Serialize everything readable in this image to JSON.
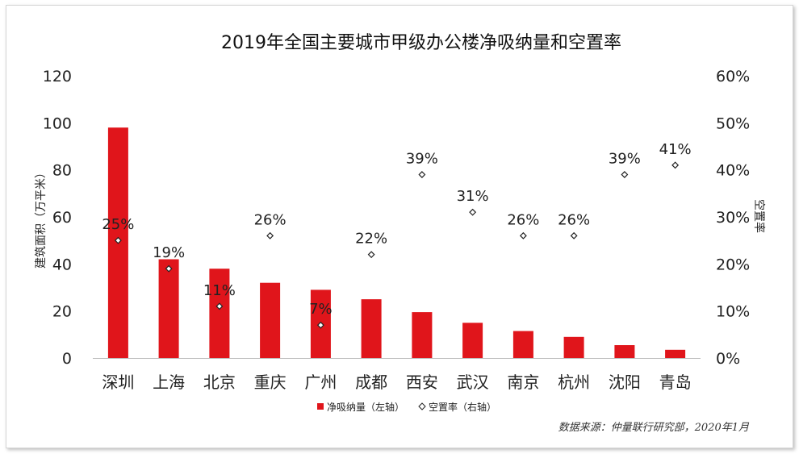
{
  "chart_data": {
    "type": "bar+scatter",
    "title": "2019年全国主要城市甲级办公楼净吸纳量和空置率",
    "categories": [
      "深圳",
      "上海",
      "北京",
      "重庆",
      "广州",
      "成都",
      "西安",
      "武汉",
      "南京",
      "杭州",
      "沈阳",
      "青岛"
    ],
    "series": [
      {
        "name": "净吸纳量（左轴）",
        "type": "bar",
        "axis": "left",
        "color": "#e0151b",
        "values": [
          98,
          42,
          38,
          32,
          29,
          25,
          19.5,
          15,
          11.5,
          9,
          5.5,
          3.5
        ]
      },
      {
        "name": "空置率（右轴）",
        "type": "scatter",
        "axis": "right",
        "marker": "diamond",
        "values": [
          25,
          19,
          11,
          26,
          7,
          22,
          39,
          31,
          26,
          26,
          39,
          41
        ],
        "labels": [
          "25%",
          "19%",
          "11%",
          "26%",
          "7%",
          "22%",
          "39%",
          "31%",
          "26%",
          "26%",
          "39%",
          "41%"
        ]
      }
    ],
    "y_left": {
      "label": "建筑面积（万平米）",
      "min": 0,
      "max": 120,
      "ticks": [
        "0",
        "20",
        "40",
        "60",
        "80",
        "100",
        "120"
      ]
    },
    "y_right": {
      "label": "空置率",
      "min": 0,
      "max": 60,
      "ticks": [
        "0%",
        "10%",
        "20%",
        "30%",
        "40%",
        "50%",
        "60%"
      ]
    },
    "legend_position": "bottom",
    "source": "数据来源：仲量联行研究部，2020年1月",
    "grid": false
  }
}
